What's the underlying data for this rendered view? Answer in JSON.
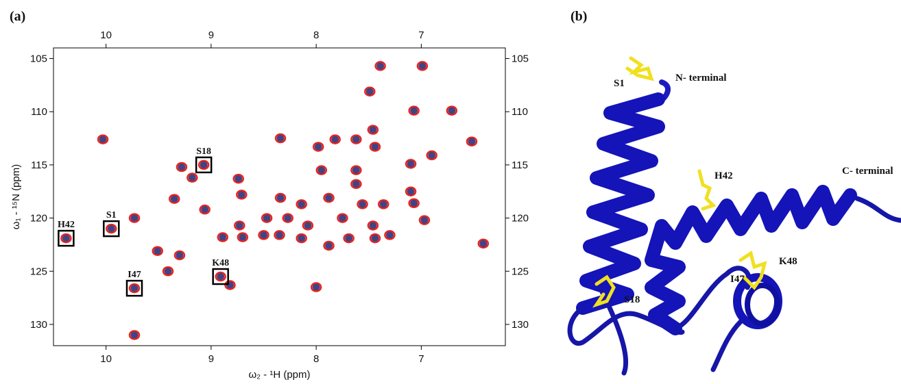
{
  "panels": [
    {
      "label": "(a)"
    },
    {
      "label": "(b)"
    }
  ],
  "chart_data": {
    "type": "scatter",
    "x_label": "ω₂ - ¹H (ppm)",
    "y_label": "ω₁ - ¹⁵N (ppm)",
    "xlim": [
      10.5,
      6.2
    ],
    "ylim": [
      104,
      132
    ],
    "xticks": [
      10,
      9,
      8,
      7
    ],
    "yticks": [
      105,
      110,
      115,
      120,
      125,
      130
    ],
    "colors": [
      "#e8241f",
      "#22226e"
    ],
    "x": [
      7.39,
      6.99,
      7.49,
      7.07,
      6.71,
      10.03,
      8.34,
      7.98,
      7.82,
      7.62,
      7.46,
      7.44,
      7.1,
      6.9,
      6.52,
      9.07,
      9.28,
      9.18,
      8.74,
      9.35,
      9.06,
      8.71,
      7.95,
      7.62,
      7.62,
      7.88,
      8.14,
      8.27,
      8.08,
      7.75,
      7.56,
      7.36,
      7.88,
      8.14,
      7.69,
      7.46,
      7.44,
      7.3,
      7.1,
      7.07,
      6.97,
      8.89,
      8.7,
      8.5,
      8.73,
      9.95,
      10.38,
      9.73,
      9.51,
      9.3,
      9.41,
      9.73,
      8.91,
      8.82,
      8.0,
      9.73,
      6.41,
      8.35,
      8.47,
      8.34
    ],
    "y": [
      105.7,
      105.7,
      108.1,
      109.9,
      109.9,
      112.6,
      112.5,
      113.3,
      112.6,
      112.6,
      111.7,
      113.3,
      114.9,
      114.1,
      112.8,
      115.0,
      115.2,
      116.2,
      116.3,
      118.2,
      119.2,
      117.8,
      115.5,
      115.5,
      116.8,
      118.1,
      118.7,
      120.0,
      120.7,
      120.0,
      118.7,
      118.7,
      122.6,
      121.9,
      121.9,
      120.7,
      121.9,
      121.6,
      117.5,
      118.6,
      120.2,
      121.8,
      121.8,
      121.6,
      120.7,
      121.0,
      121.9,
      120.0,
      123.1,
      123.5,
      125.0,
      126.6,
      125.5,
      126.3,
      126.5,
      131.0,
      122.4,
      121.6,
      120.0,
      118.1
    ],
    "annotations": [
      {
        "label": "S18",
        "x": 9.07,
        "y": 115.0
      },
      {
        "label": "S1",
        "x": 9.95,
        "y": 121.0
      },
      {
        "label": "H42",
        "x": 10.38,
        "y": 121.9
      },
      {
        "label": "I47",
        "x": 9.73,
        "y": 126.6
      },
      {
        "label": "K48",
        "x": 8.91,
        "y": 125.5
      }
    ]
  },
  "structure": {
    "labels": [
      "S1",
      "N- terminal",
      "H42",
      "C- terminal",
      "K48",
      "I47",
      "S18"
    ]
  }
}
